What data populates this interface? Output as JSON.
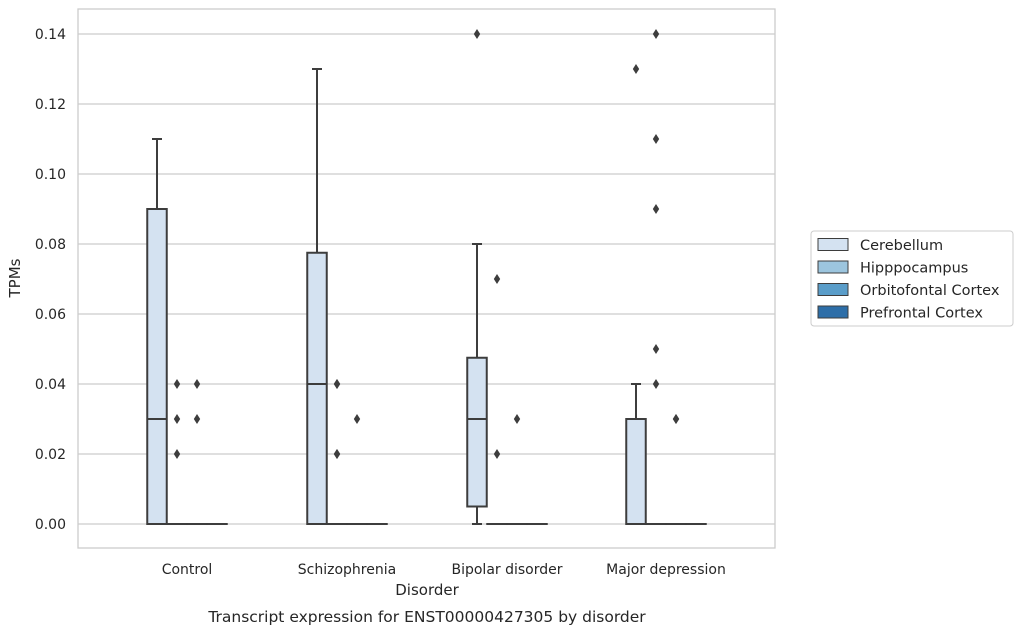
{
  "chart_data": {
    "type": "box",
    "xlabel": "Disorder",
    "ylabel": "TPMs",
    "caption": "Transcript expression for ENST00000427305 by disorder",
    "ylim": [
      -0.007,
      0.147
    ],
    "y_ticks": [
      "0.00",
      "0.02",
      "0.04",
      "0.06",
      "0.08",
      "0.10",
      "0.12",
      "0.14"
    ],
    "y_tick_values": [
      0,
      0.02,
      0.04,
      0.06,
      0.08,
      0.1,
      0.12,
      0.14
    ],
    "grid": true,
    "legend_position": "right",
    "categories": [
      "Control",
      "Schizophrenia",
      "Bipolar disorder",
      "Major depression"
    ],
    "series": [
      {
        "name": "Cerebellum",
        "color": "#d4e2f1",
        "boxes": [
          {
            "q1": 0.0,
            "median": 0.03,
            "q3": 0.09,
            "whisker_low": 0.0,
            "whisker_high": 0.11,
            "outliers": []
          },
          {
            "q1": 0.0,
            "median": 0.04,
            "q3": 0.0775,
            "whisker_low": 0.0,
            "whisker_high": 0.13,
            "outliers": []
          },
          {
            "q1": 0.005,
            "median": 0.03,
            "q3": 0.0475,
            "whisker_low": 0.0,
            "whisker_high": 0.08,
            "outliers": [
              0.14
            ]
          },
          {
            "q1": 0.0,
            "median": 0.0,
            "q3": 0.03,
            "whisker_low": 0.0,
            "whisker_high": 0.04,
            "outliers": [
              0.13
            ]
          }
        ]
      },
      {
        "name": "Hipppocampus",
        "color": "#9cc5de",
        "boxes": [
          {
            "q1": 0.0,
            "median": 0.0,
            "q3": 0.0,
            "whisker_low": 0.0,
            "whisker_high": 0.0,
            "outliers": [
              0.04,
              0.03,
              0.02
            ]
          },
          {
            "q1": 0.0,
            "median": 0.0,
            "q3": 0.0,
            "whisker_low": 0.0,
            "whisker_high": 0.0,
            "outliers": [
              0.04,
              0.04,
              0.02,
              0.02
            ]
          },
          {
            "q1": 0.0,
            "median": 0.0,
            "q3": 0.0,
            "whisker_low": 0.0,
            "whisker_high": 0.0,
            "outliers": [
              0.07,
              0.02
            ]
          },
          {
            "q1": 0.0,
            "median": 0.0,
            "q3": 0.0,
            "whisker_low": 0.0,
            "whisker_high": 0.0,
            "outliers": [
              0.14,
              0.11,
              0.09,
              0.05,
              0.04
            ]
          }
        ]
      },
      {
        "name": "Orbitofontal Cortex",
        "color": "#5a9dc9",
        "boxes": [
          {
            "q1": 0.0,
            "median": 0.0,
            "q3": 0.0,
            "whisker_low": 0.0,
            "whisker_high": 0.0,
            "outliers": [
              0.04,
              0.03
            ]
          },
          {
            "q1": 0.0,
            "median": 0.0,
            "q3": 0.0,
            "whisker_low": 0.0,
            "whisker_high": 0.0,
            "outliers": [
              0.03
            ]
          },
          {
            "q1": 0.0,
            "median": 0.0,
            "q3": 0.0,
            "whisker_low": 0.0,
            "whisker_high": 0.0,
            "outliers": [
              0.03
            ]
          },
          {
            "q1": 0.0,
            "median": 0.0,
            "q3": 0.0,
            "whisker_low": 0.0,
            "whisker_high": 0.0,
            "outliers": [
              0.03,
              0.03
            ]
          }
        ]
      },
      {
        "name": "Prefrontal Cortex",
        "color": "#2d6ea8",
        "boxes": [
          {
            "q1": 0.0,
            "median": 0.0,
            "q3": 0.0,
            "whisker_low": 0.0,
            "whisker_high": 0.0,
            "outliers": []
          },
          {
            "q1": 0.0,
            "median": 0.0,
            "q3": 0.0,
            "whisker_low": 0.0,
            "whisker_high": 0.0,
            "outliers": []
          },
          {
            "q1": 0.0,
            "median": 0.0,
            "q3": 0.0,
            "whisker_low": 0.0,
            "whisker_high": 0.0,
            "outliers": []
          },
          {
            "q1": 0.0,
            "median": 0.0,
            "q3": 0.0,
            "whisker_low": 0.0,
            "whisker_high": 0.0,
            "outliers": []
          }
        ]
      }
    ],
    "colors": {
      "axis": "#cccccc",
      "grid": "#cccccc",
      "box_line": "#3d3d3d",
      "text": "#262626"
    }
  }
}
